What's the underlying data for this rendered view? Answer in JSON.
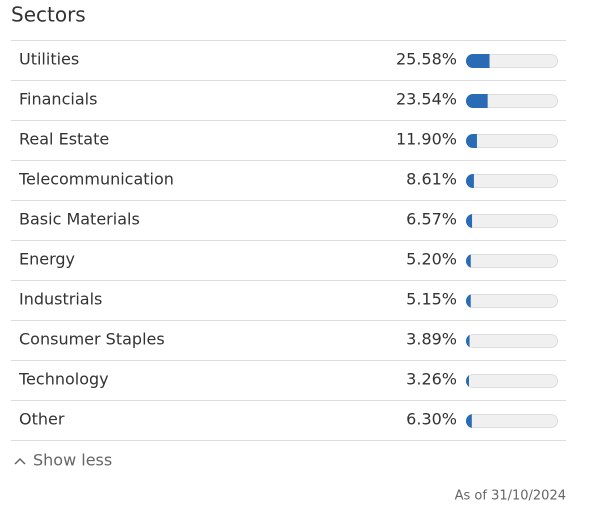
{
  "chart_data": {
    "type": "bar",
    "orientation": "horizontal",
    "title": "Sectors",
    "categories": [
      "Utilities",
      "Financials",
      "Real Estate",
      "Telecommunication",
      "Basic Materials",
      "Energy",
      "Industrials",
      "Consumer Staples",
      "Technology",
      "Other"
    ],
    "values": [
      25.58,
      23.54,
      11.9,
      8.61,
      6.57,
      5.2,
      5.15,
      3.89,
      3.26,
      6.3
    ],
    "value_labels": [
      "25.58%",
      "23.54%",
      "11.90%",
      "8.61%",
      "6.57%",
      "5.20%",
      "5.15%",
      "3.89%",
      "3.26%",
      "6.30%"
    ],
    "xlim": [
      0,
      100
    ],
    "color": "#2a6bb5"
  },
  "toggle": "Show less",
  "footnote": "As of 31/10/2024"
}
